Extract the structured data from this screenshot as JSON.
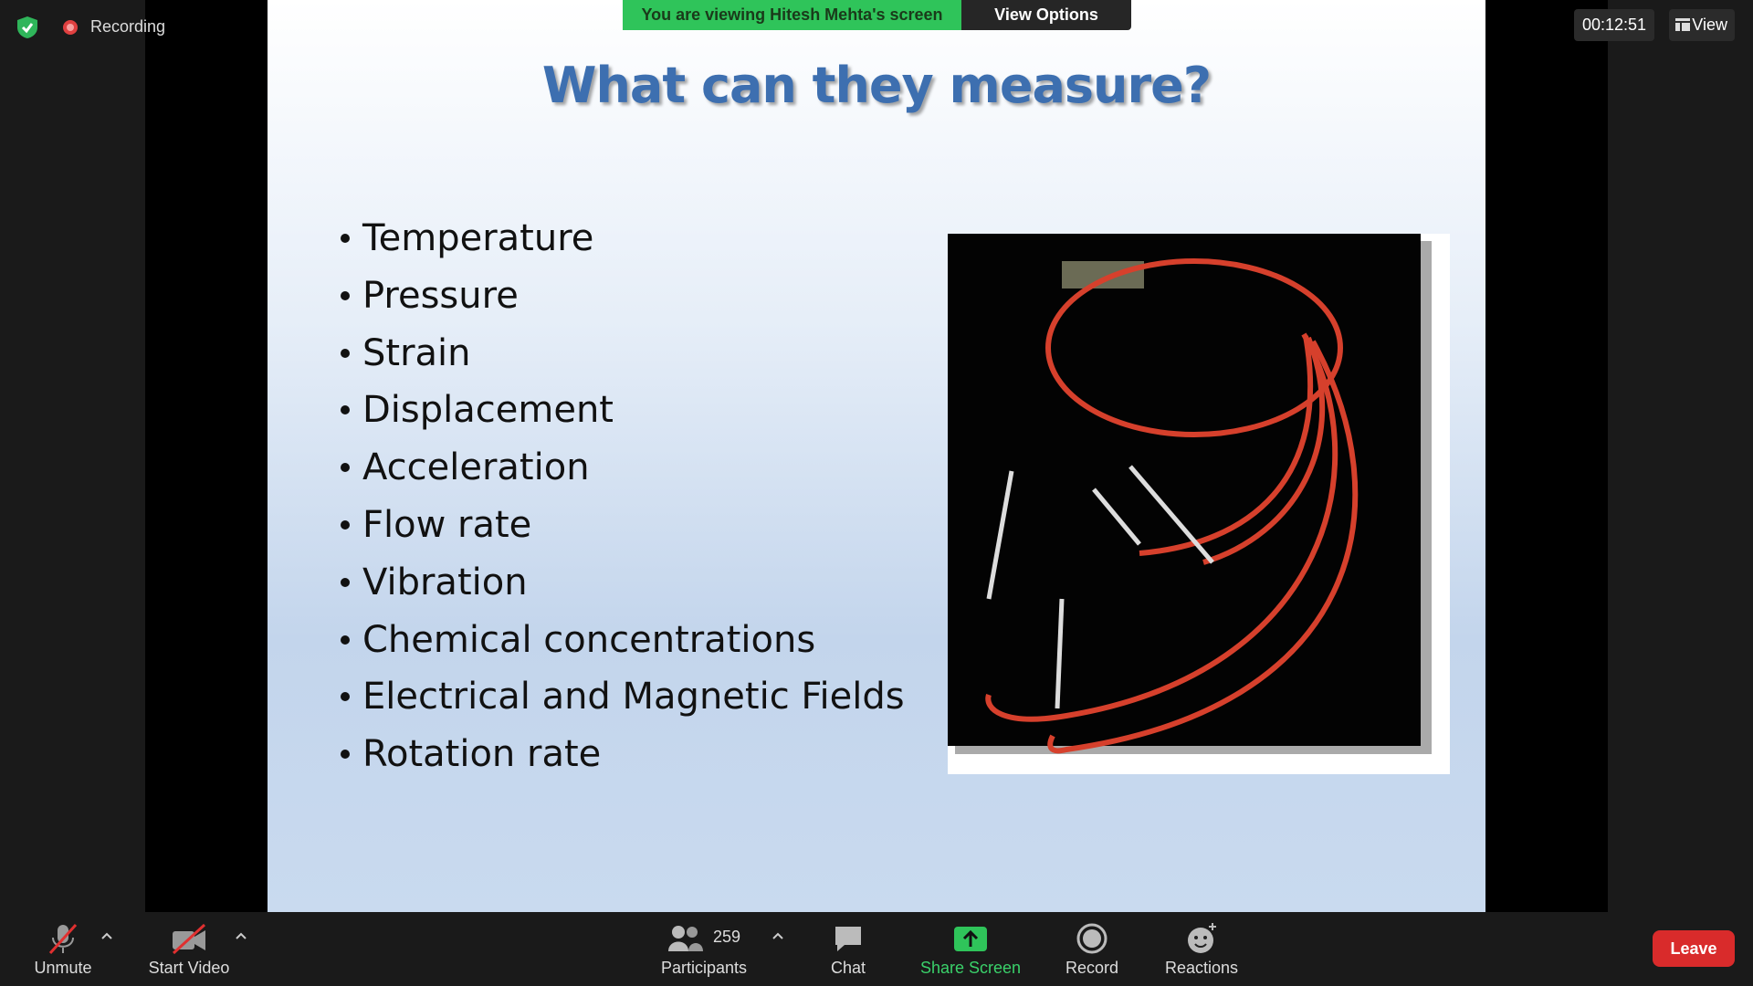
{
  "top_bar": {
    "recording": "Recording",
    "banner": "You are viewing Hitesh Mehta's screen",
    "view_options": "View Options",
    "timer": "00:12:51",
    "view": "View"
  },
  "slide": {
    "title": "What can they measure?",
    "bullets": [
      "Temperature",
      "Pressure",
      "Strain",
      "Displacement",
      "Acceleration",
      "Flow rate",
      "Vibration",
      "Chemical concentrations",
      "Electrical and Magnetic Fields",
      "Rotation rate"
    ]
  },
  "toolbar": {
    "unmute": "Unmute",
    "start_video": "Start Video",
    "participants_count": "259",
    "participants": "Participants",
    "chat": "Chat",
    "share_screen": "Share Screen",
    "record": "Record",
    "reactions": "Reactions",
    "leave": "Leave"
  }
}
